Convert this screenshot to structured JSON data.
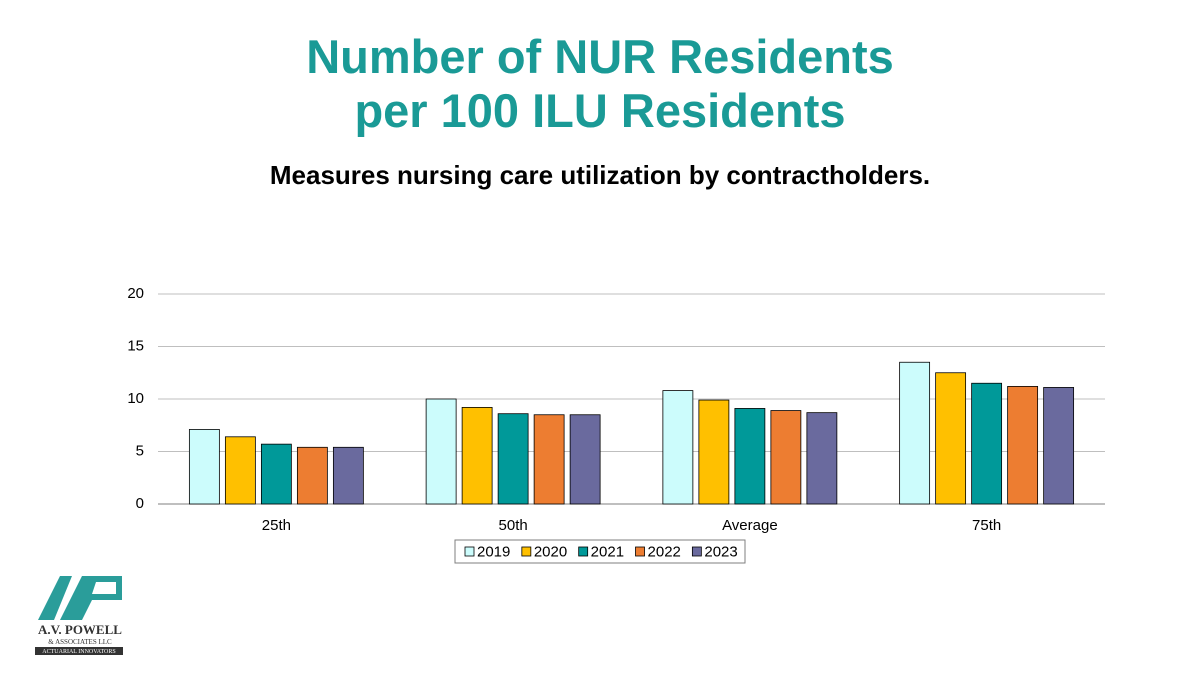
{
  "chart_data": {
    "type": "bar",
    "title": "Number of NUR Residents per 100 ILU Residents",
    "subtitle": "Measures nursing care utilization by contractholders.",
    "categories": [
      "25th",
      "50th",
      "Average",
      "75th"
    ],
    "series": [
      {
        "name": "2019",
        "color": "#ccfcfc",
        "values": [
          7.1,
          10.0,
          10.8,
          13.5
        ]
      },
      {
        "name": "2020",
        "color": "#ffc000",
        "values": [
          6.4,
          9.2,
          9.9,
          12.5
        ]
      },
      {
        "name": "2021",
        "color": "#009999",
        "values": [
          5.7,
          8.6,
          9.1,
          11.5
        ]
      },
      {
        "name": "2022",
        "color": "#ed7d31",
        "values": [
          5.4,
          8.5,
          8.9,
          11.2
        ]
      },
      {
        "name": "2023",
        "color": "#6a6a9e",
        "values": [
          5.4,
          8.5,
          8.7,
          11.1
        ]
      }
    ],
    "ylim": [
      0,
      20
    ],
    "yticks": [
      0,
      5,
      10,
      15,
      20
    ],
    "grid": true,
    "legend": "bottom"
  },
  "logo": {
    "name": "A.V. POWELL",
    "company": "& ASSOCIATES LLC",
    "tagline": "ACTUARIAL INNOVATORS"
  }
}
